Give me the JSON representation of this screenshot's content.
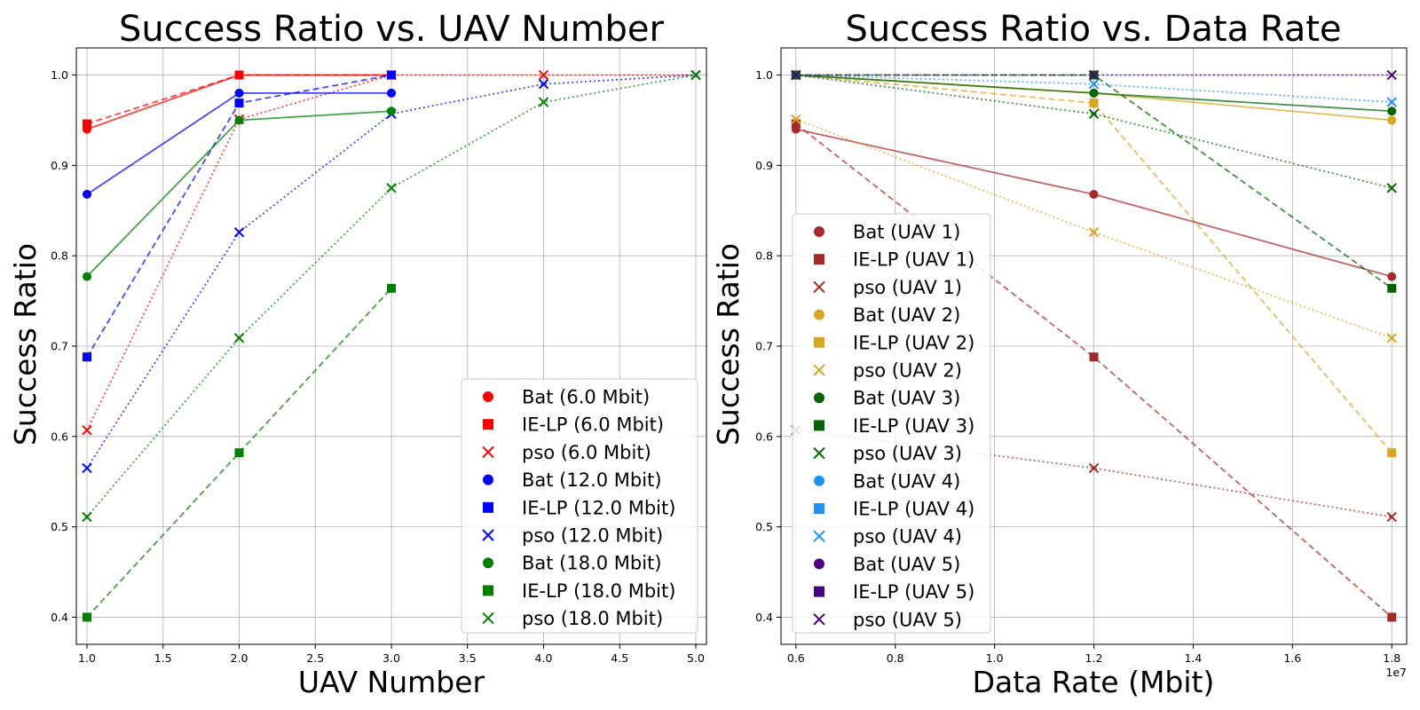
{
  "chart_data": [
    {
      "type": "line",
      "title": "Success Ratio vs. UAV Number",
      "xlabel": "UAV Number",
      "ylabel": "Success Ratio",
      "xlim": [
        0.93,
        5.07
      ],
      "ylim": [
        0.37,
        1.03
      ],
      "xticks": [
        1.0,
        1.5,
        2.0,
        2.5,
        3.0,
        3.5,
        4.0,
        4.5,
        5.0
      ],
      "xtick_labels": [
        "1.0",
        "1.5",
        "2.0",
        "2.5",
        "3.0",
        "3.5",
        "4.0",
        "4.5",
        "5.0"
      ],
      "yticks": [
        0.4,
        0.5,
        0.6,
        0.7,
        0.8,
        0.9,
        1.0
      ],
      "ytick_labels": [
        "0.4",
        "0.5",
        "0.6",
        "0.7",
        "0.8",
        "0.9",
        "1.0"
      ],
      "grid": true,
      "legend_position": "lower-right",
      "series": [
        {
          "name": "Bat (6.0 Mbit)",
          "color": "#ff0000",
          "marker": "circle",
          "line": "solid",
          "x": [
            1,
            2,
            3
          ],
          "values": [
            0.94,
            1.0,
            1.0
          ]
        },
        {
          "name": "IE-LP (6.0 Mbit)",
          "color": "#ff0000",
          "marker": "square",
          "line": "dashed",
          "x": [
            1,
            2,
            3
          ],
          "values": [
            0.946,
            1.0,
            1.0
          ]
        },
        {
          "name": "pso (6.0 Mbit)",
          "color": "#ff0000",
          "marker": "x",
          "line": "dotted",
          "x": [
            1,
            2,
            3,
            4,
            5
          ],
          "values": [
            0.607,
            0.951,
            1.0,
            1.0,
            1.0
          ]
        },
        {
          "name": "Bat (12.0 Mbit)",
          "color": "#0000ff",
          "marker": "circle",
          "line": "solid",
          "x": [
            1,
            2,
            3
          ],
          "values": [
            0.868,
            0.98,
            0.98
          ]
        },
        {
          "name": "IE-LP (12.0 Mbit)",
          "color": "#0000ff",
          "marker": "square",
          "line": "dashed",
          "x": [
            1,
            2,
            3
          ],
          "values": [
            0.688,
            0.969,
            1.0
          ]
        },
        {
          "name": "pso (12.0 Mbit)",
          "color": "#0000ff",
          "marker": "x",
          "line": "dotted",
          "x": [
            1,
            2,
            3,
            4,
            5
          ],
          "values": [
            0.565,
            0.826,
            0.957,
            0.99,
            1.0
          ]
        },
        {
          "name": "Bat (18.0 Mbit)",
          "color": "#008000",
          "marker": "circle",
          "line": "solid",
          "x": [
            1,
            2,
            3
          ],
          "values": [
            0.777,
            0.95,
            0.96
          ]
        },
        {
          "name": "IE-LP (18.0 Mbit)",
          "color": "#008000",
          "marker": "square",
          "line": "dashed",
          "x": [
            1,
            2,
            3
          ],
          "values": [
            0.4,
            0.582,
            0.764
          ]
        },
        {
          "name": "pso (18.0 Mbit)",
          "color": "#008000",
          "marker": "x",
          "line": "dotted",
          "x": [
            1,
            2,
            3,
            4,
            5
          ],
          "values": [
            0.511,
            0.709,
            0.875,
            0.97,
            1.0
          ]
        }
      ]
    },
    {
      "type": "line",
      "title": "Success Ratio vs. Data Rate",
      "xlabel": "Data Rate (Mbit)",
      "ylabel": "Success Ratio",
      "x_scale_label": "1e7",
      "xlim": [
        0.57,
        1.83
      ],
      "ylim": [
        0.37,
        1.03
      ],
      "xticks": [
        0.6,
        0.8,
        1.0,
        1.2,
        1.4,
        1.6,
        1.8
      ],
      "xtick_labels": [
        "0.6",
        "0.8",
        "1.0",
        "1.2",
        "1.4",
        "1.6",
        "1.8"
      ],
      "yticks": [
        0.4,
        0.5,
        0.6,
        0.7,
        0.8,
        0.9,
        1.0
      ],
      "ytick_labels": [
        "0.4",
        "0.5",
        "0.6",
        "0.7",
        "0.8",
        "0.9",
        "1.0"
      ],
      "grid": true,
      "legend_position": "lower-left",
      "series": [
        {
          "name": "Bat (UAV 1)",
          "color": "#a52a2a",
          "marker": "circle",
          "line": "solid",
          "x": [
            0.6,
            1.2,
            1.8
          ],
          "values": [
            0.94,
            0.868,
            0.777
          ]
        },
        {
          "name": "IE-LP (UAV 1)",
          "color": "#a52a2a",
          "marker": "square",
          "line": "dashed",
          "x": [
            0.6,
            1.2,
            1.8
          ],
          "values": [
            0.946,
            0.688,
            0.4
          ]
        },
        {
          "name": "pso (UAV 1)",
          "color": "#a52a2a",
          "marker": "x",
          "line": "dotted",
          "x": [
            0.6,
            1.2,
            1.8
          ],
          "values": [
            0.607,
            0.565,
            0.511
          ]
        },
        {
          "name": "Bat (UAV 2)",
          "color": "#daa520",
          "marker": "circle",
          "line": "solid",
          "x": [
            0.6,
            1.2,
            1.8
          ],
          "values": [
            1.0,
            0.98,
            0.95
          ]
        },
        {
          "name": "IE-LP (UAV 2)",
          "color": "#daa520",
          "marker": "square",
          "line": "dashed",
          "x": [
            0.6,
            1.2,
            1.8
          ],
          "values": [
            1.0,
            0.969,
            0.582
          ]
        },
        {
          "name": "pso (UAV 2)",
          "color": "#daa520",
          "marker": "x",
          "line": "dotted",
          "x": [
            0.6,
            1.2,
            1.8
          ],
          "values": [
            0.951,
            0.826,
            0.709
          ]
        },
        {
          "name": "Bat (UAV 3)",
          "color": "#006400",
          "marker": "circle",
          "line": "solid",
          "x": [
            0.6,
            1.2,
            1.8
          ],
          "values": [
            1.0,
            0.98,
            0.96
          ]
        },
        {
          "name": "IE-LP (UAV 3)",
          "color": "#006400",
          "marker": "square",
          "line": "dashed",
          "x": [
            0.6,
            1.2,
            1.8
          ],
          "values": [
            1.0,
            1.0,
            0.764
          ]
        },
        {
          "name": "pso (UAV 3)",
          "color": "#006400",
          "marker": "x",
          "line": "dotted",
          "x": [
            0.6,
            1.2,
            1.8
          ],
          "values": [
            1.0,
            0.957,
            0.875
          ]
        },
        {
          "name": "Bat (UAV 4)",
          "color": "#1e90ff",
          "marker": "circle",
          "line": "solid",
          "x": [],
          "values": []
        },
        {
          "name": "IE-LP (UAV 4)",
          "color": "#1e90ff",
          "marker": "square",
          "line": "dashed",
          "x": [],
          "values": []
        },
        {
          "name": "pso (UAV 4)",
          "color": "#1e90ff",
          "marker": "x",
          "line": "dotted",
          "x": [
            0.6,
            1.2,
            1.8
          ],
          "values": [
            1.0,
            0.99,
            0.97
          ]
        },
        {
          "name": "Bat (UAV 5)",
          "color": "#4b0082",
          "marker": "circle",
          "line": "solid",
          "x": [],
          "values": []
        },
        {
          "name": "IE-LP (UAV 5)",
          "color": "#4b0082",
          "marker": "square",
          "line": "dashed",
          "x": [],
          "values": []
        },
        {
          "name": "pso (UAV 5)",
          "color": "#4b0082",
          "marker": "x",
          "line": "dotted",
          "x": [
            0.6,
            1.2,
            1.8
          ],
          "values": [
            1.0,
            1.0,
            1.0
          ]
        }
      ]
    }
  ]
}
